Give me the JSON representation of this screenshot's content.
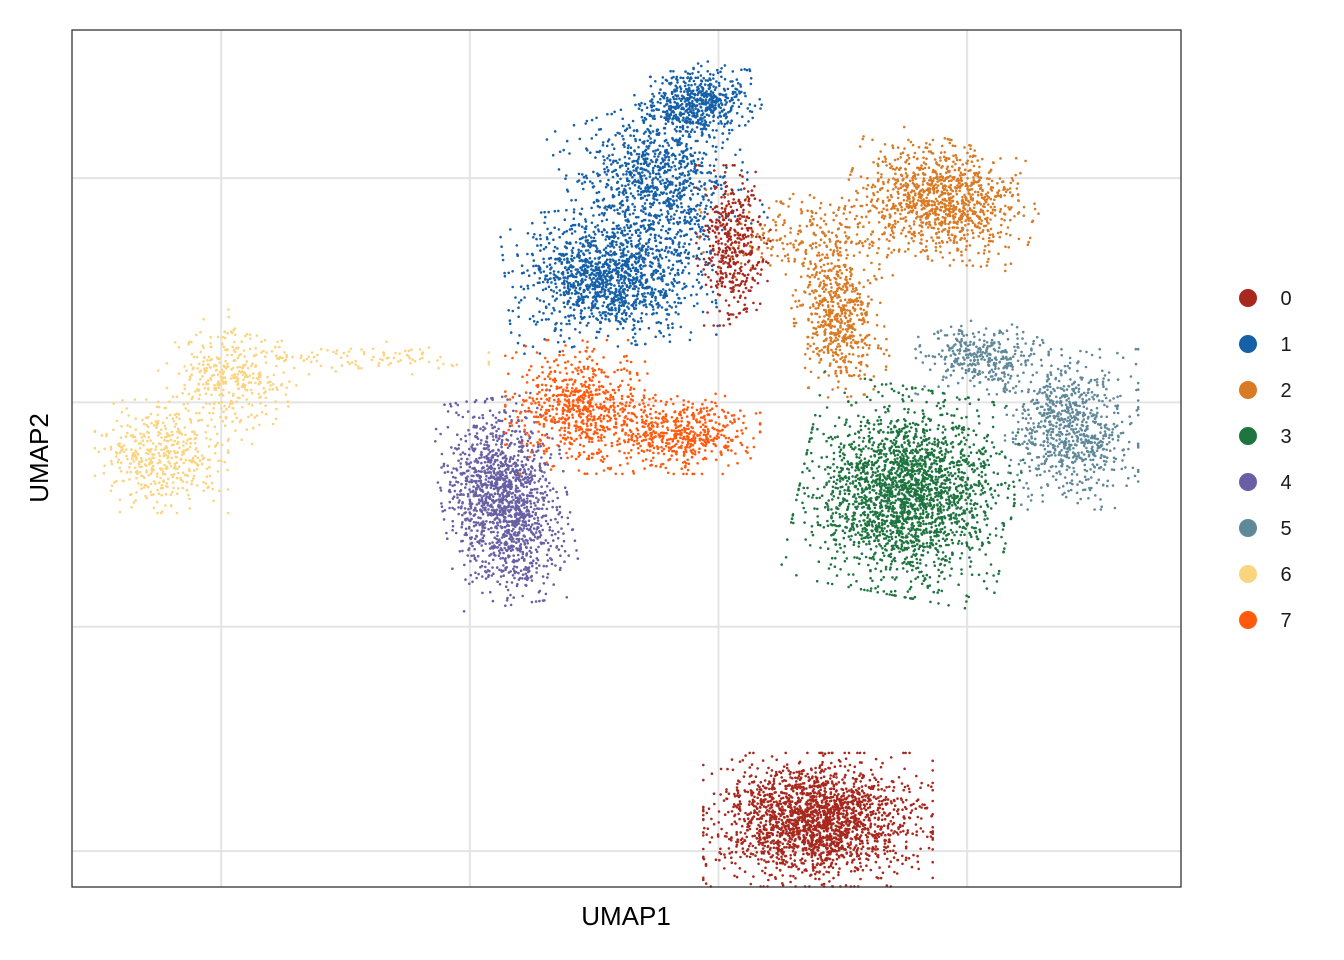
{
  "chart_data": {
    "type": "scatter",
    "title": "",
    "xlabel": "UMAP1",
    "ylabel": "UMAP2",
    "xlim": [
      -13,
      9.3
    ],
    "ylim": [
      -9.3,
      9.8
    ],
    "grid": true,
    "tick_labels_shown": false,
    "x_gridlines": [
      -10,
      -5,
      0,
      5
    ],
    "y_gridlines": [
      -8.5,
      -3.5,
      1.5,
      6.5
    ],
    "legend_position": "right",
    "point_counts": {
      "0": 2600,
      "1": 2900,
      "2": 1900,
      "3": 2400,
      "4": 1500,
      "5": 1150,
      "6": 900,
      "7": 1200
    },
    "series": [
      {
        "name": "0",
        "color": "#A8281E",
        "clusters": [
          {
            "cx": 2.0,
            "cy": -7.8,
            "sx": 1.55,
            "sy": 1.0,
            "rot": 0,
            "w": 0.84
          },
          {
            "cx": 0.3,
            "cy": 5.0,
            "sx": 0.5,
            "sy": 1.2,
            "rot": 0,
            "w": 0.16
          }
        ]
      },
      {
        "name": "1",
        "color": "#1660A8",
        "clusters": [
          {
            "cx": -2.2,
            "cy": 4.3,
            "sx": 1.4,
            "sy": 1.05,
            "rot": 0.1,
            "w": 0.48
          },
          {
            "cx": -1.2,
            "cy": 6.4,
            "sx": 1.2,
            "sy": 1.2,
            "rot": 0.35,
            "w": 0.32
          },
          {
            "cx": -0.4,
            "cy": 8.2,
            "sx": 0.8,
            "sy": 0.55,
            "rot": 0.3,
            "w": 0.2
          }
        ]
      },
      {
        "name": "2",
        "color": "#D97A24",
        "clusters": [
          {
            "cx": 4.5,
            "cy": 6.0,
            "sx": 1.3,
            "sy": 0.9,
            "rot": -0.3,
            "w": 0.55
          },
          {
            "cx": 2.4,
            "cy": 3.4,
            "sx": 0.6,
            "sy": 1.2,
            "rot": 0.15,
            "w": 0.3
          },
          {
            "cx": 2.0,
            "cy": 5.2,
            "sx": 1.6,
            "sy": 0.7,
            "rot": 0,
            "w": 0.15
          }
        ]
      },
      {
        "name": "3",
        "color": "#1F7540",
        "clusters": [
          {
            "cx": 3.8,
            "cy": -0.5,
            "sx": 1.45,
            "sy": 1.55,
            "rot": -0.2,
            "w": 1.0
          }
        ]
      },
      {
        "name": "4",
        "color": "#695FA4",
        "clusters": [
          {
            "cx": -4.3,
            "cy": -0.7,
            "sx": 0.85,
            "sy": 1.55,
            "rot": 0.15,
            "w": 1.0
          }
        ]
      },
      {
        "name": "5",
        "color": "#5F8899",
        "clusters": [
          {
            "cx": 7.1,
            "cy": 0.9,
            "sx": 0.9,
            "sy": 1.2,
            "rot": 0,
            "w": 0.7
          },
          {
            "cx": 5.3,
            "cy": 2.5,
            "sx": 0.9,
            "sy": 0.55,
            "rot": 0,
            "w": 0.3
          }
        ]
      },
      {
        "name": "6",
        "color": "#FAD47E",
        "clusters": [
          {
            "cx": -11.2,
            "cy": 0.3,
            "sx": 0.9,
            "sy": 0.85,
            "rot": 0,
            "w": 0.5
          },
          {
            "cx": -9.8,
            "cy": 2.1,
            "sx": 0.9,
            "sy": 0.85,
            "rot": -0.5,
            "w": 0.4
          },
          {
            "cx": -7.0,
            "cy": 2.5,
            "sx": 1.6,
            "sy": 0.25,
            "rot": 0,
            "w": 0.1
          }
        ]
      },
      {
        "name": "7",
        "color": "#FF5A0E",
        "clusters": [
          {
            "cx": -2.8,
            "cy": 1.4,
            "sx": 1.0,
            "sy": 1.0,
            "rot": 0,
            "w": 0.55
          },
          {
            "cx": -0.8,
            "cy": 0.8,
            "sx": 1.1,
            "sy": 0.6,
            "rot": 0,
            "w": 0.45
          }
        ]
      }
    ]
  }
}
